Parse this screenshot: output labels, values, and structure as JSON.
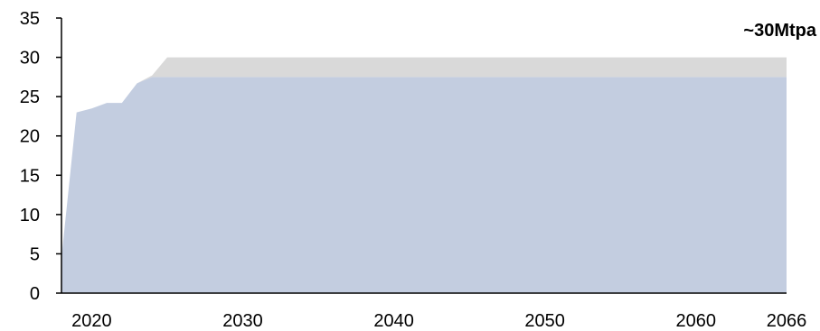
{
  "chart_data": {
    "type": "area",
    "stacked": true,
    "title": "",
    "xlabel": "",
    "ylabel": "",
    "xlim": [
      2018,
      2066
    ],
    "ylim": [
      0,
      35
    ],
    "y_ticks": [
      0,
      5,
      10,
      15,
      20,
      25,
      30,
      35
    ],
    "x_ticks": [
      2020,
      2030,
      2040,
      2050,
      2060,
      2066
    ],
    "grid": false,
    "legend": "none",
    "x": [
      2018,
      2019,
      2020,
      2021,
      2022,
      2023,
      2024,
      2025,
      2066
    ],
    "series": [
      {
        "color": "#c3cde0",
        "values": [
          4.5,
          23,
          23.5,
          24.2,
          24.2,
          26.7,
          27.5,
          27.5,
          27.5
        ]
      },
      {
        "color": "#d9d9d9",
        "values": [
          0,
          0,
          0,
          0,
          0,
          0,
          0.2,
          2.5,
          2.5
        ]
      }
    ],
    "annotations": [
      {
        "text": "~30Mtpa",
        "x": 2066,
        "y": 30
      }
    ]
  }
}
